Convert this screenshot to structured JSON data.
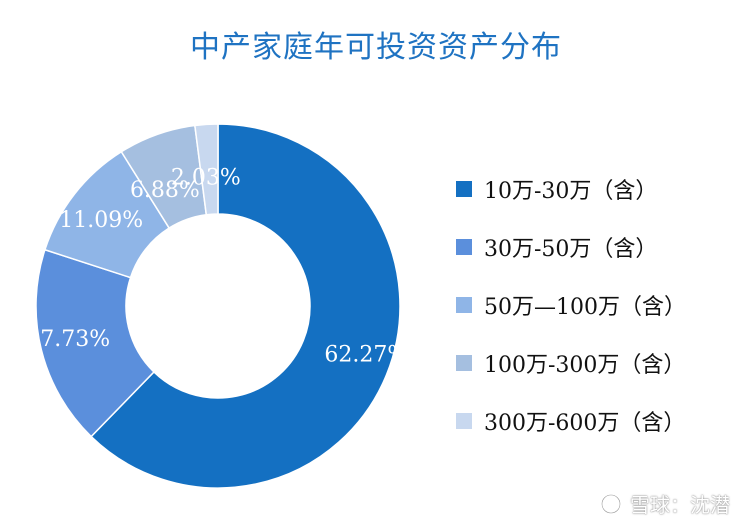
{
  "chart_data": {
    "type": "pie",
    "donut": true,
    "title": "中产家庭年可投资资产分布",
    "categories": [
      "10万-30万（含）",
      "30万-50万（含）",
      "50万—100万（含）",
      "100万-300万（含）",
      "300万-600万（含）"
    ],
    "values": [
      62.27,
      17.73,
      11.09,
      6.88,
      2.03
    ],
    "value_labels": [
      "62.27%",
      "17.73%",
      "11.09%",
      "6.88%",
      "2.03%"
    ],
    "colors": [
      "#1470c2",
      "#5b8fdc",
      "#8fb5e7",
      "#a5bfe0",
      "#c8d8ef"
    ],
    "legend_position": "right"
  },
  "watermark": {
    "text": "雪球：沈潜",
    "icon": "snowball-logo-icon"
  }
}
